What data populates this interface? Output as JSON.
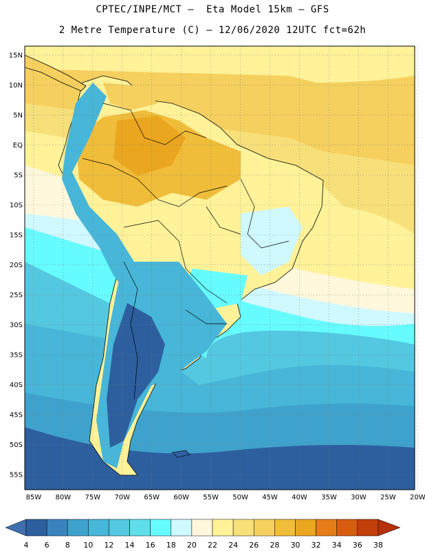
{
  "header": {
    "line1": "CPTEC/INPE/MCT –  Eta Model 15km – GFS",
    "line2": "2 Metre Temperature (C) – 12/06/2020 12UTC fct=62h"
  },
  "axes": {
    "lat_labels": [
      "15N",
      "10N",
      "5N",
      "EQ",
      "5S",
      "10S",
      "15S",
      "20S",
      "25S",
      "30S",
      "35S",
      "40S",
      "45S",
      "50S",
      "55S"
    ],
    "lon_labels": [
      "85W",
      "80W",
      "75W",
      "70W",
      "65W",
      "60W",
      "55W",
      "50W",
      "45W",
      "40W",
      "35W",
      "30W",
      "25W",
      "20W"
    ],
    "lat_range": [
      16.5,
      -57.5
    ],
    "lon_range": [
      -86.5,
      -20.5
    ],
    "gridlines": "dotted"
  },
  "colorbar": {
    "ticks": [
      "4",
      "6",
      "8",
      "10",
      "12",
      "14",
      "16",
      "18",
      "20",
      "22",
      "24",
      "26",
      "28",
      "30",
      "32",
      "34",
      "36",
      "38"
    ],
    "colors": [
      "#3f6fae",
      "#2d5f9f",
      "#3a83be",
      "#3fa2cc",
      "#47b6d8",
      "#54c8e0",
      "#5fdfea",
      "#66fbff",
      "#cff8ff",
      "#fff8dc",
      "#fff299",
      "#f7e07a",
      "#f5d05e",
      "#f0bd3a",
      "#eba620",
      "#e47d18",
      "#d85c10",
      "#c13f08",
      "#b42f0a"
    ]
  },
  "palette": {
    "ocean_cold": "#2d5f9f",
    "ocean_cool": "#47b6d8",
    "ocean_mild": "#66fbff",
    "ocean_warm": "#fff299",
    "tropical": "#f5d05e",
    "land_hot": "#f0bd3a",
    "andes": "#47b6d8",
    "patagonia": "#2d5f9f",
    "borders": "#000000"
  }
}
